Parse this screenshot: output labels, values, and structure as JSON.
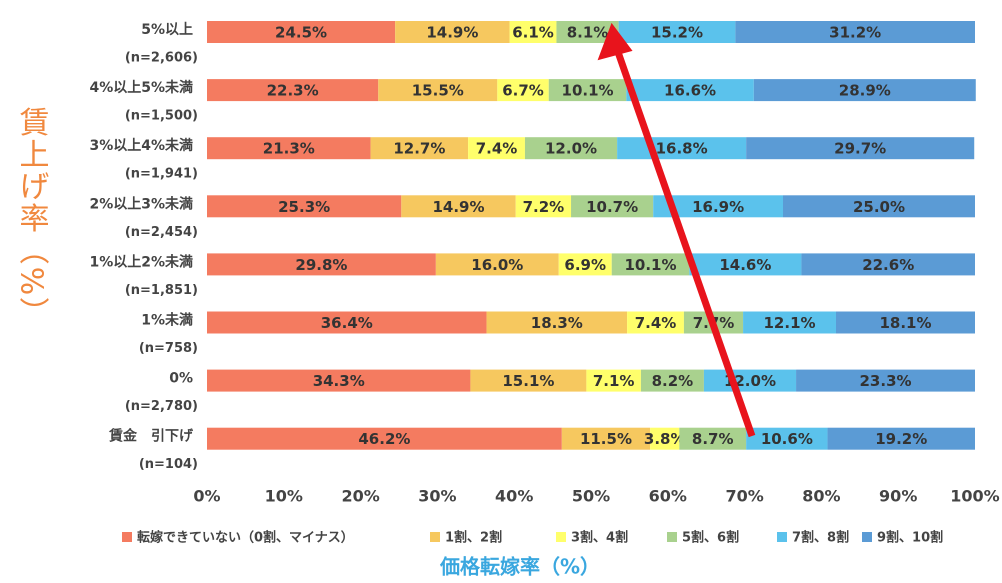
{
  "chart_data": {
    "type": "stacked_bar_horizontal",
    "y_axis_label": "賃上げ率（%）",
    "x_axis_label": "価格転嫁率（%）",
    "categories": [
      "5%以上",
      "4%以上5%未満",
      "3%以上4%未満",
      "2%以上3%未満",
      "1%以上2%未満",
      "1%未満",
      "0%",
      "賃金　引下げ"
    ],
    "sample_sizes": [
      "(n=2,606)",
      "(n=1,500)",
      "(n=1,941)",
      "(n=2,454)",
      "(n=1,851)",
      "(n=758)",
      "(n=2,780)",
      "(n=104)"
    ],
    "series": [
      {
        "name": "転嫁できていない（0割、マイナス）",
        "color": "#f47b60",
        "values": [
          24.5,
          22.3,
          21.3,
          25.3,
          29.8,
          36.4,
          34.3,
          46.2
        ],
        "value_labels": [
          "24.5%",
          "22.3%",
          "21.3%",
          "25.3%",
          "29.8%",
          "36.4%",
          "34.3%",
          "46.2%"
        ]
      },
      {
        "name": "1割、2割",
        "color": "#f6c85f",
        "values": [
          14.9,
          15.5,
          12.7,
          14.9,
          16.0,
          18.3,
          15.1,
          11.5
        ],
        "value_labels": [
          "14.9%",
          "15.5%",
          "12.7%",
          "14.9%",
          "16.0%",
          "18.3%",
          "15.1%",
          "11.5%"
        ]
      },
      {
        "name": "3割、4割",
        "color": "#ffff6b",
        "values": [
          6.1,
          6.7,
          7.4,
          7.2,
          6.9,
          7.4,
          7.1,
          3.8
        ],
        "value_labels": [
          "6.1%",
          "6.7%",
          "7.4%",
          "7.2%",
          "6.9%",
          "7.4%",
          "7.1%",
          "3.8%"
        ]
      },
      {
        "name": "5割、6割",
        "color": "#a9d18e",
        "values": [
          8.1,
          10.1,
          12.0,
          10.7,
          10.1,
          7.7,
          8.2,
          8.7
        ],
        "value_labels": [
          "8.1%",
          "10.1%",
          "12.0%",
          "10.7%",
          "10.1%",
          "7.7%",
          "8.2%",
          "8.7%"
        ]
      },
      {
        "name": "7割、8割",
        "color": "#5bc2ec",
        "values": [
          15.2,
          16.6,
          16.8,
          16.9,
          14.6,
          12.1,
          12.0,
          10.6
        ],
        "value_labels": [
          "15.2%",
          "16.6%",
          "16.8%",
          "16.9%",
          "14.6%",
          "12.1%",
          "12.0%",
          "10.6%"
        ]
      },
      {
        "name": "9割、10割",
        "color": "#5b9bd5",
        "values": [
          31.2,
          28.9,
          29.7,
          25.0,
          22.6,
          18.1,
          23.3,
          19.2
        ],
        "value_labels": [
          "31.2%",
          "28.9%",
          "29.7%",
          "25.0%",
          "22.6%",
          "18.1%",
          "23.3%",
          "19.2%"
        ]
      }
    ],
    "xlim": [
      0,
      100
    ],
    "xticks": [
      {
        "value": 0,
        "label": "0%"
      },
      {
        "value": 10,
        "label": "10%"
      },
      {
        "value": 20,
        "label": "20%"
      },
      {
        "value": 30,
        "label": "30%"
      },
      {
        "value": 40,
        "label": "40%"
      },
      {
        "value": 50,
        "label": "50%"
      },
      {
        "value": 60,
        "label": "60%"
      },
      {
        "value": 70,
        "label": "70%"
      },
      {
        "value": 80,
        "label": "80%"
      },
      {
        "value": 90,
        "label": "90%"
      },
      {
        "value": 100,
        "label": "100%"
      }
    ],
    "legend": "bottom"
  }
}
